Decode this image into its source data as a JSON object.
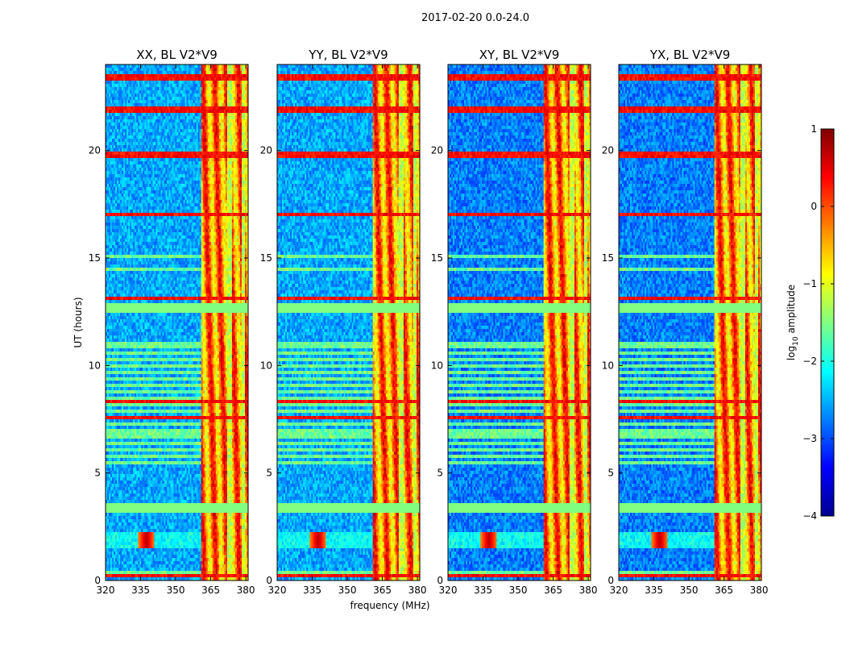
{
  "figure": {
    "suptitle": "2017-02-20 0.0-24.0"
  },
  "chart_data": {
    "type": "heatmap",
    "xlabel": "frequency (MHz)",
    "ylabel": "UT (hours)",
    "xlim": [
      320,
      381
    ],
    "ylim": [
      0,
      24
    ],
    "xticks": [
      320,
      335,
      350,
      365,
      380
    ],
    "yticks": [
      0,
      5,
      10,
      15,
      20
    ],
    "panels": [
      {
        "title": "XX, BL V2*V9",
        "polarization": "XX"
      },
      {
        "title": "YY, BL V2*V9",
        "polarization": "YY"
      },
      {
        "title": "XY, BL V2*V9",
        "polarization": "XY"
      },
      {
        "title": "YX, BL V2*V9",
        "polarization": "YX"
      }
    ],
    "colorbar": {
      "label_main": "log",
      "label_sub": "10",
      "label_rest": " amplitude",
      "range": [
        -4,
        1
      ],
      "ticks": [
        1,
        0,
        -1,
        -2,
        -3,
        -4
      ],
      "tick_labels": [
        "1",
        "0",
        "−1",
        "−2",
        "−3",
        "−4"
      ],
      "colormap": "jet"
    },
    "features": {
      "rfi_band_mhz": [
        361,
        381
      ],
      "flagged_time_blocks_hours": [
        [
          12.4,
          12.9
        ],
        [
          3.2,
          3.6
        ]
      ],
      "strong_rfi_rows_hours": [
        23.4,
        21.9,
        19.8,
        17.0,
        13.1,
        8.3,
        7.6,
        0.2
      ],
      "burst_time_hours": [
        1.5,
        2.2
      ],
      "burst_peak_mhz": 337.5
    }
  }
}
